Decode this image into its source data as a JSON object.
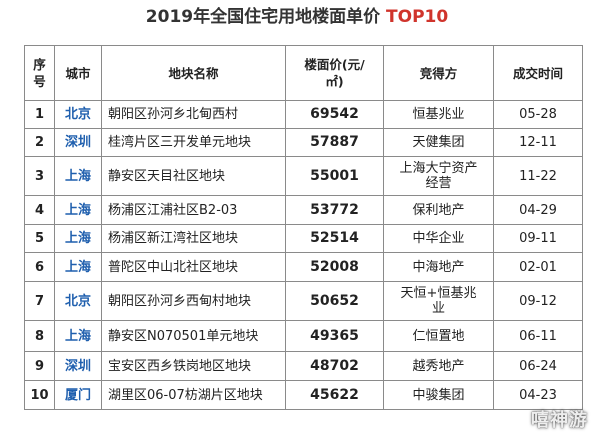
{
  "title": {
    "text": "2019年全国住宅用地楼面单价",
    "accent": "TOP10"
  },
  "table": {
    "headers": [
      "序号",
      "城市",
      "地块名称",
      "楼面价(元/㎡)",
      "竞得方",
      "成交时间"
    ],
    "rows": [
      [
        "1",
        "北京",
        "朝阳区孙河乡北甸西村",
        "69542",
        "恒基兆业",
        "05-28"
      ],
      [
        "2",
        "深圳",
        "桂湾片区三开发单元地块",
        "57887",
        "天健集团",
        "12-11"
      ],
      [
        "3",
        "上海",
        "静安区天目社区地块",
        "55001",
        "上海大宁资产经营",
        "11-22"
      ],
      [
        "4",
        "上海",
        "杨浦区江浦社区B2-03",
        "53772",
        "保利地产",
        "04-29"
      ],
      [
        "5",
        "上海",
        "杨浦区新江湾社区地块",
        "52514",
        "中华企业",
        "09-11"
      ],
      [
        "6",
        "上海",
        "普陀区中山北社区地块",
        "52008",
        "中海地产",
        "02-01"
      ],
      [
        "7",
        "北京",
        "朝阳区孙河乡西甸村地块",
        "50652",
        "天恒+恒基兆业",
        "09-12"
      ],
      [
        "8",
        "上海",
        "静安区N070501单元地块",
        "49365",
        "仁恒置地",
        "06-11"
      ],
      [
        "9",
        "深圳",
        "宝安区西乡铁岗地区地块",
        "48702",
        "越秀地产",
        "06-24"
      ],
      [
        "10",
        "厦门",
        "湖里区06-07枋湖片区地块",
        "45622",
        "中骏集团",
        "04-23"
      ]
    ]
  },
  "watermark": "嘻神游",
  "colors": {
    "city": "#1f5fae",
    "accent": "#d0342c",
    "border": "#8a8a8a"
  }
}
